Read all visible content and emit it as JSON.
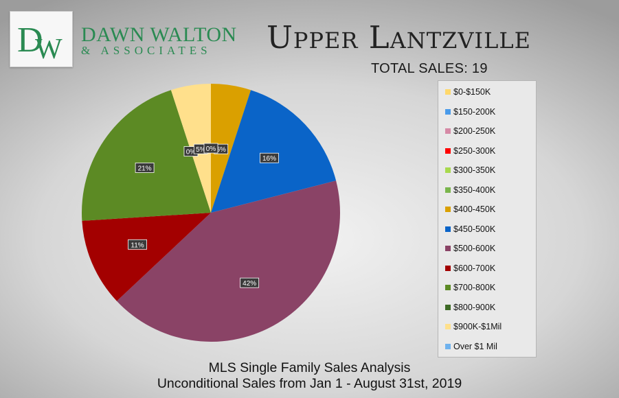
{
  "brand": {
    "monogram": "DW",
    "name": "DAWN WALTON",
    "sub": "& ASSOCIATES",
    "color": "#2a8a52"
  },
  "chart_data": {
    "type": "pie",
    "title": "Upper Lantzville",
    "subtitle": "TOTAL SALES: 19",
    "legend_position": "right",
    "slices": [
      {
        "label": "$400-450K",
        "value": 5,
        "color": "#daa000",
        "display": "5%"
      },
      {
        "label": "$450-500K",
        "value": 16,
        "color": "#0a64c8",
        "display": "16%"
      },
      {
        "label": "$500-600K",
        "value": 42,
        "color": "#8a4366",
        "display": "42%"
      },
      {
        "label": "$600-700K",
        "value": 11,
        "color": "#a30000",
        "display": "11%"
      },
      {
        "label": "$700-800K",
        "value": 21,
        "color": "#5c8a24",
        "display": "21%"
      },
      {
        "label": "$800-900K",
        "value": 0,
        "color": "#3e6a26",
        "display": "0%"
      },
      {
        "label": "$900K-$1Mil",
        "value": 5,
        "color": "#ffe08c",
        "display": "5%"
      },
      {
        "label": "Over $1 Mil",
        "value": 0,
        "color": "#6fb2ee",
        "display": "0%"
      }
    ],
    "legend": [
      {
        "label": "$0-$150K",
        "color": "#ffd86b"
      },
      {
        "label": "$150-200K",
        "color": "#4a9bea"
      },
      {
        "label": "$200-250K",
        "color": "#d68aa6"
      },
      {
        "label": "$250-300K",
        "color": "#ff0000"
      },
      {
        "label": "$300-350K",
        "color": "#a8d94e"
      },
      {
        "label": "$350-400K",
        "color": "#7ab54c"
      },
      {
        "label": "$400-450K",
        "color": "#daa000"
      },
      {
        "label": "$450-500K",
        "color": "#0a64c8"
      },
      {
        "label": "$500-600K",
        "color": "#8a4366"
      },
      {
        "label": "$600-700K",
        "color": "#a30000"
      },
      {
        "label": "$700-800K",
        "color": "#5c8a24"
      },
      {
        "label": "$800-900K",
        "color": "#3e6a26"
      },
      {
        "label": "$900K-$1Mil",
        "color": "#ffe08c"
      },
      {
        "label": "Over $1 Mil",
        "color": "#6fb2ee"
      }
    ]
  },
  "footer": {
    "line1": "MLS Single Family Sales Analysis",
    "line2": "Unconditional Sales from Jan 1 - August 31st, 2019"
  }
}
